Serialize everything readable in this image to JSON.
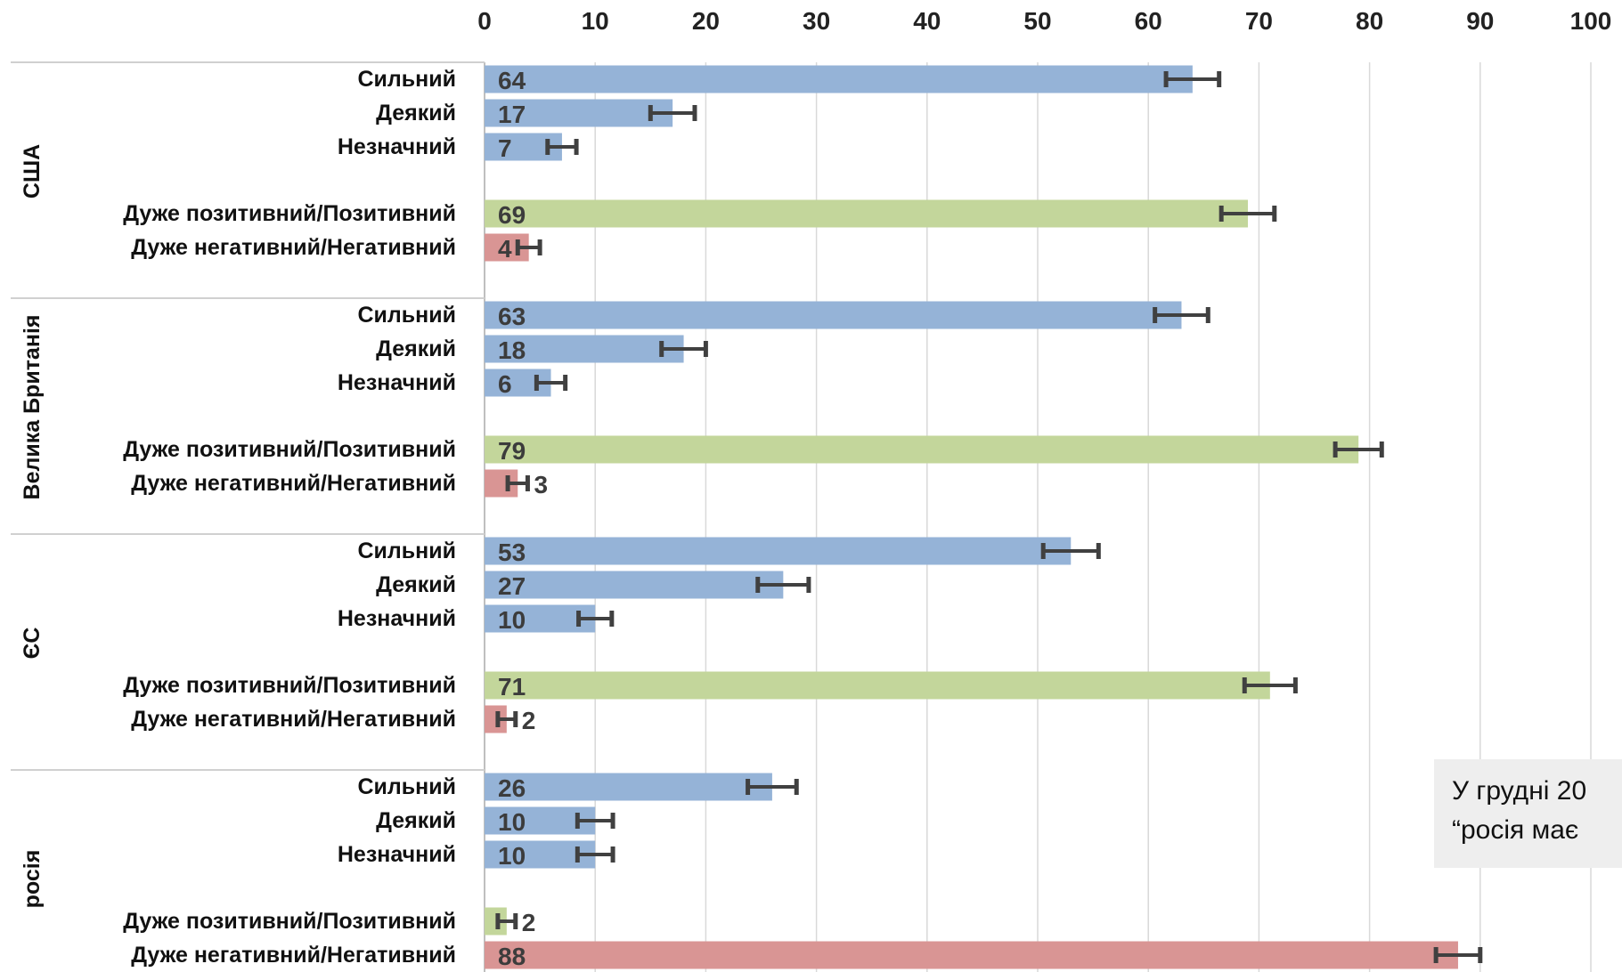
{
  "chart_data": {
    "type": "bar",
    "orientation": "horizontal",
    "xlim": [
      0,
      100
    ],
    "x_ticks": [
      0,
      10,
      20,
      30,
      40,
      50,
      60,
      70,
      80,
      90,
      100
    ],
    "grid": "vertical",
    "colors": {
      "strength": "#95b3d7",
      "positive": "#c3d69b",
      "negative": "#d99594",
      "error_bar": "#404040"
    },
    "groups": [
      {
        "name": "США",
        "bars": [
          {
            "label": "Сильний",
            "value": 64,
            "error": 2.4,
            "kind": "strength"
          },
          {
            "label": "Деякий",
            "value": 17,
            "error": 2.0,
            "kind": "strength"
          },
          {
            "label": "Незначний",
            "value": 7,
            "error": 1.3,
            "kind": "strength"
          },
          {
            "label": "Дуже позитивний/Позитивний",
            "value": 69,
            "error": 2.4,
            "kind": "positive"
          },
          {
            "label": "Дуже негативний/Негативний",
            "value": 4,
            "error": 1.0,
            "kind": "negative"
          }
        ]
      },
      {
        "name": "Велика Британія",
        "bars": [
          {
            "label": "Сильний",
            "value": 63,
            "error": 2.4,
            "kind": "strength"
          },
          {
            "label": "Деякий",
            "value": 18,
            "error": 2.0,
            "kind": "strength"
          },
          {
            "label": "Незначний",
            "value": 6,
            "error": 1.3,
            "kind": "strength"
          },
          {
            "label": "Дуже позитивний/Позитивний",
            "value": 79,
            "error": 2.1,
            "kind": "positive"
          },
          {
            "label": "Дуже негативний/Негативний",
            "value": 3,
            "error": 0.9,
            "kind": "negative"
          }
        ]
      },
      {
        "name": "ЄС",
        "bars": [
          {
            "label": "Сильний",
            "value": 53,
            "error": 2.5,
            "kind": "strength"
          },
          {
            "label": "Деякий",
            "value": 27,
            "error": 2.3,
            "kind": "strength"
          },
          {
            "label": "Незначний",
            "value": 10,
            "error": 1.5,
            "kind": "strength"
          },
          {
            "label": "Дуже позитивний/Позитивний",
            "value": 71,
            "error": 2.3,
            "kind": "positive"
          },
          {
            "label": "Дуже негативний/Негативний",
            "value": 2,
            "error": 0.8,
            "kind": "negative"
          }
        ]
      },
      {
        "name": "росія",
        "bars": [
          {
            "label": "Сильний",
            "value": 26,
            "error": 2.2,
            "kind": "strength"
          },
          {
            "label": "Деякий",
            "value": 10,
            "error": 1.6,
            "kind": "strength"
          },
          {
            "label": "Незначний",
            "value": 10,
            "error": 1.6,
            "kind": "strength"
          },
          {
            "label": "Дуже позитивний/Позитивний",
            "value": 2,
            "error": 0.8,
            "kind": "positive"
          },
          {
            "label": "Дуже негативний/Негативний",
            "value": 88,
            "error": 2.0,
            "kind": "negative"
          }
        ]
      }
    ]
  },
  "note": {
    "line1": "У грудні 20",
    "line2": "“росія має"
  }
}
